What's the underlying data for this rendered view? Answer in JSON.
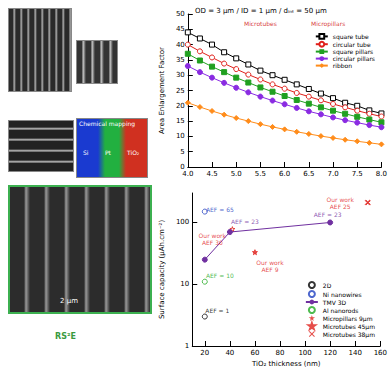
{
  "chart_data": [
    {
      "type": "line",
      "title": "OD = 3 µm / ID = 1 µm / dᵢₙₜ = 50 µm",
      "y_label": "Area Enlargement Factor",
      "x": [
        4.0,
        4.25,
        4.5,
        4.75,
        5.0,
        5.25,
        5.5,
        5.75,
        6.0,
        6.25,
        6.5,
        6.75,
        7.0,
        7.25,
        7.5,
        7.75,
        8.0
      ],
      "xlim": [
        4,
        8
      ],
      "xticks": [
        {
          "value": 4,
          "label": "4.0"
        },
        {
          "value": 4.5,
          "label": "4.5"
        },
        {
          "value": 5,
          "label": "5.0"
        },
        {
          "value": 5.5,
          "label": "5.5"
        },
        {
          "value": 6,
          "label": "6.0"
        },
        {
          "value": 6.5,
          "label": "6.5"
        },
        {
          "value": 7,
          "label": "7.0"
        },
        {
          "value": 7.5,
          "label": "7.5"
        },
        {
          "value": 8,
          "label": "8.0"
        }
      ],
      "ylim": [
        0,
        50
      ],
      "yticks": [
        0,
        5,
        10,
        15,
        20,
        25,
        30,
        35,
        40,
        45,
        50
      ],
      "grid": false,
      "legend": "upper right",
      "series": [
        {
          "name": "square tube",
          "color": "#000000",
          "marker": "open_square",
          "values": [
            44,
            42,
            40,
            37.5,
            35.5,
            33.5,
            31.5,
            30,
            28.5,
            27,
            25.5,
            24,
            22.5,
            21,
            20,
            18.5,
            17.5
          ]
        },
        {
          "name": "circular tube",
          "color": "#e0201b",
          "marker": "open_circle",
          "values": [
            40,
            37.8,
            35.8,
            33.8,
            32,
            30.2,
            28.6,
            27,
            25.6,
            24.2,
            23,
            21.8,
            20.6,
            19.5,
            18.4,
            17.4,
            16.5
          ]
        },
        {
          "name": "square pillars",
          "color": "#20a020",
          "marker": "square",
          "values": [
            37,
            34.8,
            32.8,
            31,
            29.2,
            27.6,
            26,
            24.6,
            23.2,
            21.9,
            20.7,
            19.5,
            18.4,
            17.4,
            16.4,
            15.5,
            14.6
          ]
        },
        {
          "name": "circular pillars",
          "color": "#8a2be2",
          "marker": "circle",
          "values": [
            33,
            31,
            29.2,
            27.5,
            25.9,
            24.4,
            23,
            21.7,
            20.5,
            19.3,
            18.2,
            17.2,
            16.2,
            15.3,
            14.5,
            13.7,
            13
          ]
        },
        {
          "name": "ribbon",
          "color": "#ff8c1a",
          "marker": "diamond",
          "values": [
            21,
            19.6,
            18.3,
            17.1,
            16,
            15,
            14,
            13.1,
            12.3,
            11.5,
            10.8,
            10.1,
            9.5,
            8.9,
            8.4,
            7.9,
            7.4
          ]
        }
      ],
      "annotations": [
        {
          "text": "Microtubes",
          "x": 5.5,
          "y": 47,
          "color": "#cc0000"
        },
        {
          "text": "Micropillars",
          "x": 6.9,
          "y": 47,
          "color": "#cc0000"
        }
      ]
    },
    {
      "type": "scatter",
      "x_label": "TiO₂ thickness (nm)",
      "y_label": "Surface capacity (µAh.cm⁻²)",
      "log": "y",
      "xlim": [
        10,
        160
      ],
      "xticks": [
        20,
        40,
        60,
        80,
        100,
        120,
        140,
        160
      ],
      "ylim": [
        1,
        300
      ],
      "yticks": [
        1,
        10,
        100
      ],
      "grid": false,
      "legend": "lower right",
      "series": [
        {
          "name": "2D",
          "color": "#000000",
          "marker": "open_circle",
          "x": [
            20
          ],
          "values": [
            3
          ]
        },
        {
          "name": "Ni nanowires",
          "color": "#2040c0",
          "marker": "open_circle",
          "x": [
            20
          ],
          "values": [
            150
          ]
        },
        {
          "name": "TMV 3D",
          "type": "line",
          "color": "#7030a0",
          "marker": "circle",
          "x": [
            20,
            40,
            120
          ],
          "values": [
            25,
            70,
            100
          ]
        },
        {
          "name": "Al nanorods",
          "color": "#22aa22",
          "marker": "open_circle",
          "x": [
            20
          ],
          "values": [
            11
          ]
        },
        {
          "name": "Micropillars 9µm",
          "color": "#e0201b",
          "marker": "star",
          "x": [
            60
          ],
          "values": [
            33
          ]
        },
        {
          "name": "Microtubes 45µm",
          "color": "#e0201b",
          "marker": "open_star",
          "x": [
            42
          ],
          "values": [
            78
          ]
        },
        {
          "name": "Microtubes 38µm",
          "color": "#e0201b",
          "marker": "x",
          "x": [
            150
          ],
          "values": [
            210
          ]
        }
      ],
      "annotations": [
        {
          "text": "AEF = 65",
          "x": 32,
          "y": 165,
          "color": "#2040c0"
        },
        {
          "text": "AEF = 23",
          "x": 52,
          "y": 105,
          "color": "#7030a0"
        },
        {
          "text": "AEF = 23",
          "x": 118,
          "y": 135,
          "color": "#7030a0"
        },
        {
          "text": "AEF = 10",
          "x": 32,
          "y": 14,
          "color": "#22aa22"
        },
        {
          "text": "AEF = 1",
          "x": 30,
          "y": 3.8,
          "color": "#000000"
        },
        {
          "text": "Our work\nAEF 30",
          "x": 26,
          "y": 55,
          "color": "#e0201b"
        },
        {
          "text": "Our work\nAEF 9",
          "x": 72,
          "y": 20,
          "color": "#e0201b"
        },
        {
          "text": "Our work\nAEF 25",
          "x": 128,
          "y": 210,
          "color": "#e0201b"
        }
      ]
    }
  ],
  "panels": {
    "mapping_title": "Chemical mapping",
    "mapping_labels": [
      "Si",
      "Pt",
      "TiO₂"
    ],
    "scale_bar": "2 µm",
    "logo": "RS²E"
  }
}
